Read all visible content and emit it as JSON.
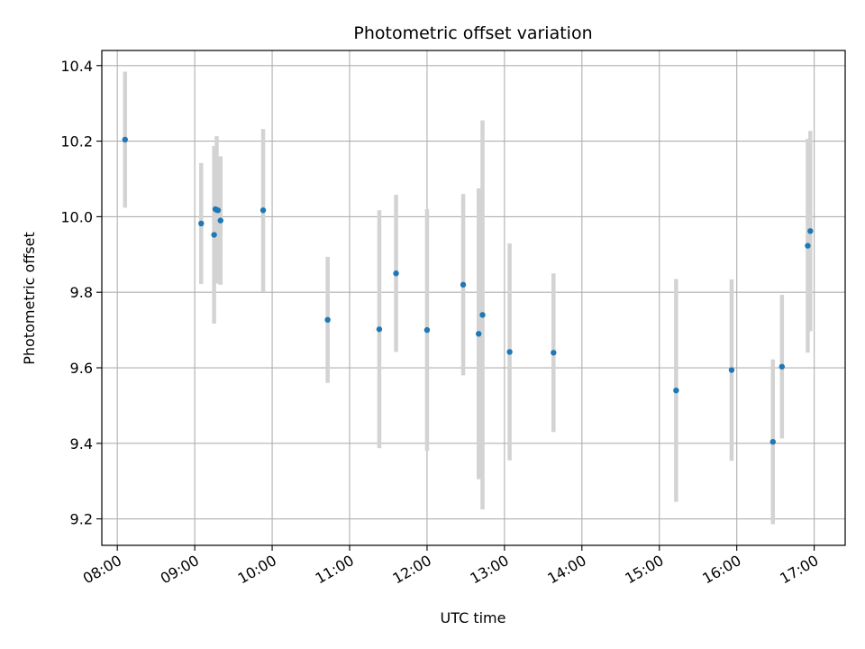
{
  "chart_data": {
    "type": "scatter",
    "title": "Photometric offset variation",
    "xlabel": "UTC time",
    "ylabel": "Photometric offset",
    "x_unit": "hours UTC",
    "xlim": [
      7.8,
      17.4
    ],
    "ylim": [
      9.13,
      10.44
    ],
    "x_ticks": [
      8,
      9,
      10,
      11,
      12,
      13,
      14,
      15,
      16,
      17
    ],
    "x_tick_labels": [
      "08:00",
      "09:00",
      "10:00",
      "11:00",
      "12:00",
      "13:00",
      "14:00",
      "15:00",
      "16:00",
      "17:00"
    ],
    "y_ticks": [
      9.2,
      9.4,
      9.6,
      9.8,
      10.0,
      10.2,
      10.4
    ],
    "y_tick_labels": [
      "9.2",
      "9.4",
      "9.6",
      "9.8",
      "10.0",
      "10.2",
      "10.4"
    ],
    "grid": true,
    "point_color": "#1f77b4",
    "errorbar_color": "#d3d3d3",
    "series": [
      {
        "points": [
          {
            "x": "08:06",
            "y": 10.204,
            "err": 0.18
          },
          {
            "x": "09:05",
            "y": 9.982,
            "err": 0.16
          },
          {
            "x": "09:15",
            "y": 9.952,
            "err": 0.235
          },
          {
            "x": "09:16",
            "y": 10.02,
            "err": 0.165
          },
          {
            "x": "09:17",
            "y": 10.018,
            "err": 0.195
          },
          {
            "x": "09:18",
            "y": 10.017,
            "err": 0.14
          },
          {
            "x": "09:20",
            "y": 9.99,
            "err": 0.17
          },
          {
            "x": "09:53",
            "y": 10.017,
            "err": 0.215
          },
          {
            "x": "10:43",
            "y": 9.727,
            "err": 0.167
          },
          {
            "x": "11:23",
            "y": 9.702,
            "err": 0.315
          },
          {
            "x": "11:36",
            "y": 9.85,
            "err": 0.208
          },
          {
            "x": "12:00",
            "y": 9.7,
            "err": 0.32
          },
          {
            "x": "12:28",
            "y": 9.82,
            "err": 0.24
          },
          {
            "x": "12:40",
            "y": 9.69,
            "err": 0.385
          },
          {
            "x": "12:43",
            "y": 9.74,
            "err": 0.515
          },
          {
            "x": "13:04",
            "y": 9.642,
            "err": 0.287
          },
          {
            "x": "13:38",
            "y": 9.64,
            "err": 0.21
          },
          {
            "x": "15:13",
            "y": 9.54,
            "err": 0.295
          },
          {
            "x": "15:56",
            "y": 9.594,
            "err": 0.24
          },
          {
            "x": "16:28",
            "y": 9.404,
            "err": 0.218
          },
          {
            "x": "16:35",
            "y": 9.603,
            "err": 0.19
          },
          {
            "x": "16:55",
            "y": 9.923,
            "err": 0.283
          },
          {
            "x": "16:57",
            "y": 9.962,
            "err": 0.265
          }
        ]
      }
    ]
  }
}
